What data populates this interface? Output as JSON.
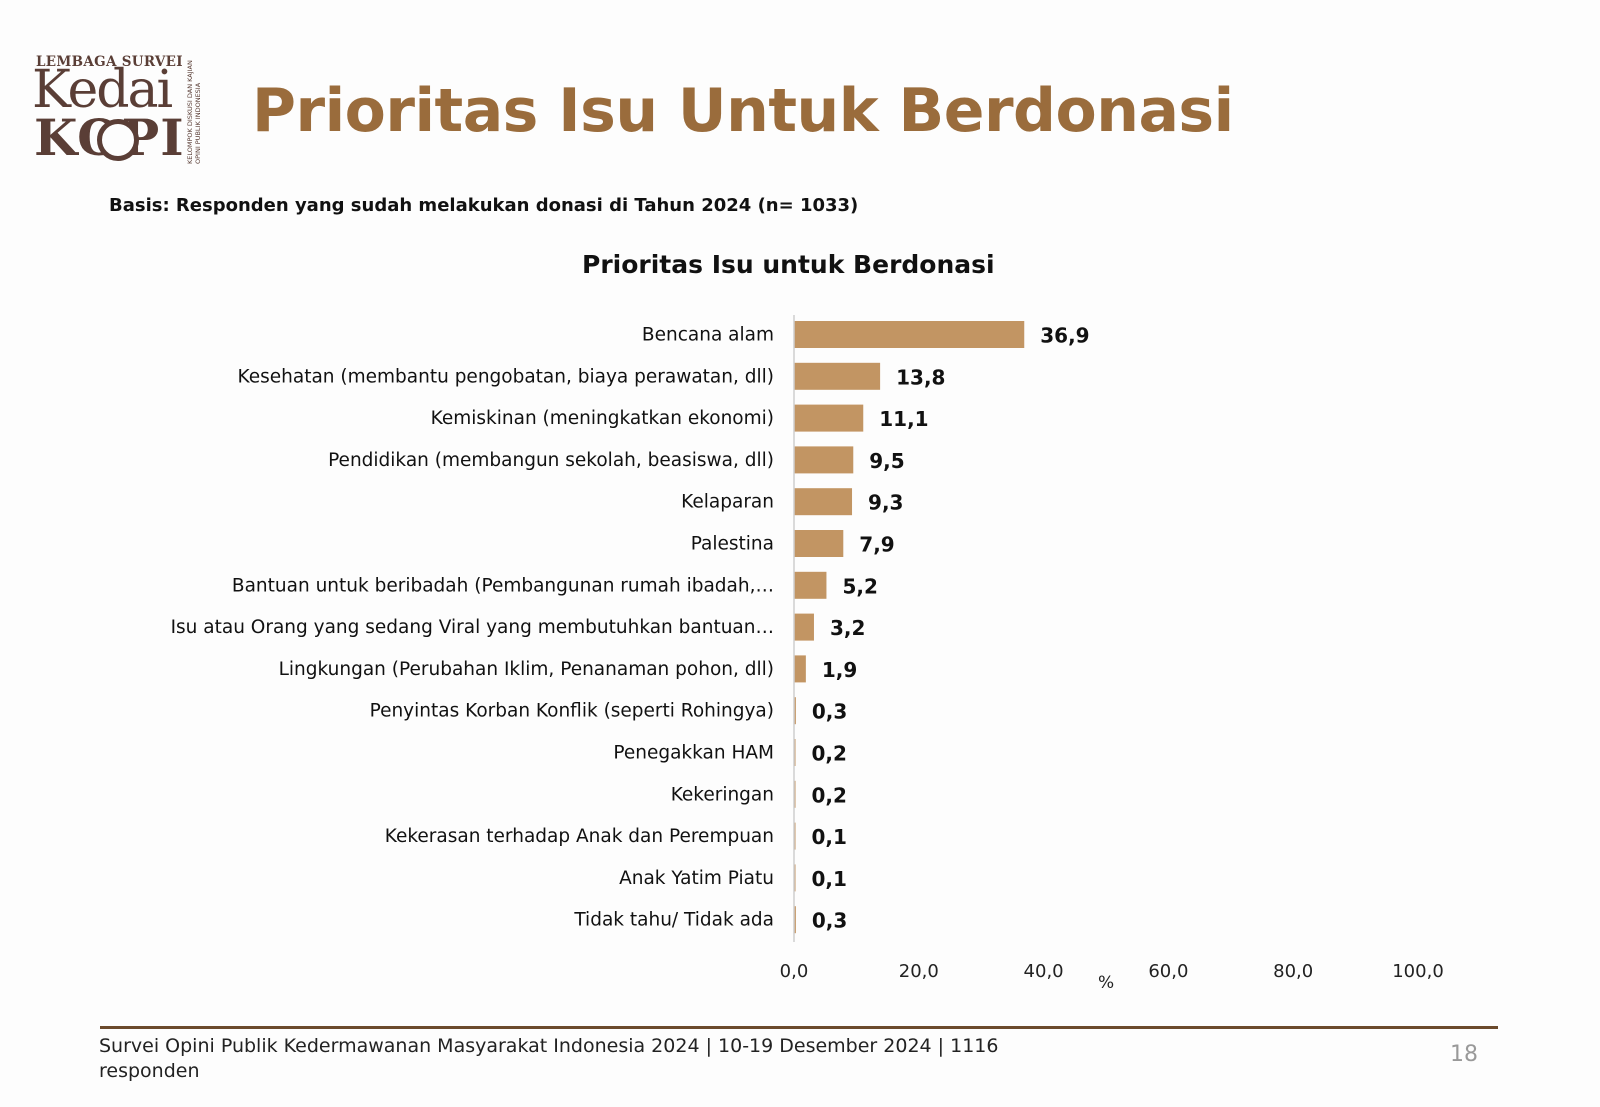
{
  "header": {
    "logo": {
      "top_text": "LEMBAGA SURVEI",
      "word1": "Kedai",
      "word2": "KOPI",
      "side_text": "KELOMPOK DISKUSI DAN KAJIAN OPINI PUBLIK INDONESIA",
      "color": "#5a3e36"
    },
    "title": "Prioritas Isu Untuk Berdonasi",
    "title_color": "#9a6c3c"
  },
  "basis": "Basis: Responden yang sudah melakukan donasi di Tahun 2024 (n= 1033)",
  "chart_data": {
    "type": "bar",
    "orientation": "horizontal",
    "title": "Prioritas Isu untuk Berdonasi",
    "categories": [
      "Bencana alam",
      "Kesehatan (membantu pengobatan, biaya perawatan, dll)",
      "Kemiskinan (meningkatkan ekonomi)",
      "Pendidikan (membangun sekolah, beasiswa, dll)",
      "Kelaparan",
      "Palestina",
      "Bantuan untuk beribadah (Pembangunan rumah ibadah,…",
      "Isu atau Orang yang sedang Viral yang membutuhkan bantuan…",
      "Lingkungan (Perubahan Iklim, Penanaman pohon, dll)",
      "Penyintas Korban Konflik (seperti Rohingya)",
      "Penegakkan HAM",
      "Kekeringan",
      "Kekerasan terhadap Anak dan Perempuan",
      "Anak Yatim Piatu",
      "Tidak tahu/ Tidak ada"
    ],
    "values": [
      36.9,
      13.8,
      11.1,
      9.5,
      9.3,
      7.9,
      5.2,
      3.2,
      1.9,
      0.3,
      0.2,
      0.2,
      0.1,
      0.1,
      0.3
    ],
    "value_labels": [
      "36,9",
      "13,8",
      "11,1",
      "9,5",
      "9,3",
      "7,9",
      "5,2",
      "3,2",
      "1,9",
      "0,3",
      "0,2",
      "0,2",
      "0,1",
      "0,1",
      "0,3"
    ],
    "xlim": [
      0,
      100
    ],
    "x_ticks": [
      "0,0",
      "20,0",
      "40,0",
      "60,0",
      "80,0",
      "100,0"
    ],
    "xlabel": "%",
    "grid": false,
    "bar_color": "#c29563"
  },
  "footer": {
    "text": "Survei Opini Publik Kedermawanan Masyarakat Indonesia 2024 | 10-19 Desember 2024 | 1116 responden",
    "page_number": "18",
    "rule_color": "#6b4a2c"
  }
}
